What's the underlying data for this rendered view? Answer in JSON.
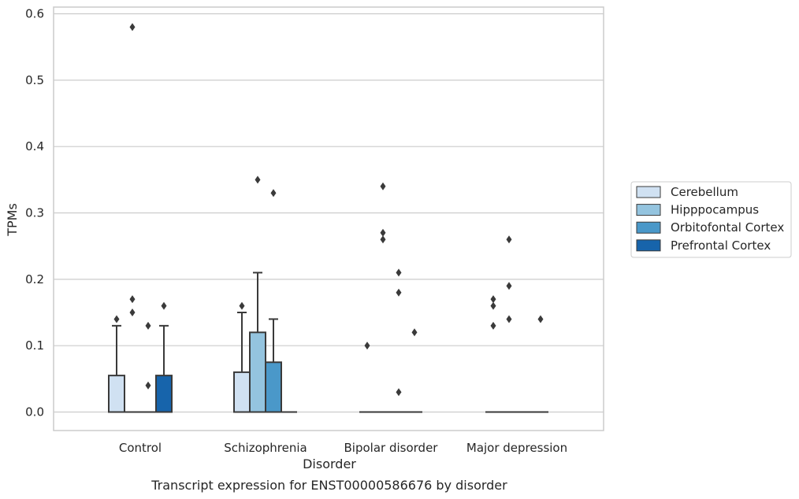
{
  "chart_data": {
    "type": "box",
    "title": "",
    "caption": "Transcript expression for ENST00000586676 by disorder",
    "xlabel": "Disorder",
    "ylabel": "TPMs",
    "ylim": [
      -0.03,
      0.61
    ],
    "yticks": [
      "0.0",
      "0.1",
      "0.2",
      "0.3",
      "0.4",
      "0.5",
      "0.6"
    ],
    "grid": "horizontal",
    "legend_position": "right",
    "categories": [
      "Control",
      "Schizophrenia",
      "Bipolar disorder",
      "Major depression"
    ],
    "series": [
      {
        "name": "Cerebellum",
        "color": "#d0e1f2",
        "boxes": [
          {
            "q1": 0,
            "median": 0,
            "q3": 0.055,
            "whisker_low": 0,
            "whisker_high": 0.13,
            "outliers": [
              0.14
            ]
          },
          {
            "q1": 0,
            "median": 0,
            "q3": 0.06,
            "whisker_low": 0,
            "whisker_high": 0.15,
            "outliers": [
              0.16
            ]
          },
          {
            "q1": 0,
            "median": 0,
            "q3": 0,
            "whisker_low": 0,
            "whisker_high": 0,
            "outliers": [
              0.1
            ]
          },
          {
            "q1": 0,
            "median": 0,
            "q3": 0,
            "whisker_low": 0,
            "whisker_high": 0,
            "outliers": [
              0.13,
              0.16,
              0.17
            ]
          }
        ]
      },
      {
        "name": "Hipppocampus",
        "color": "#94c4df",
        "boxes": [
          {
            "q1": 0,
            "median": 0,
            "q3": 0,
            "whisker_low": 0,
            "whisker_high": 0,
            "outliers": [
              0.15,
              0.17,
              0.58
            ]
          },
          {
            "q1": 0,
            "median": 0,
            "q3": 0.12,
            "whisker_low": 0,
            "whisker_high": 0.21,
            "outliers": [
              0.35
            ]
          },
          {
            "q1": 0,
            "median": 0,
            "q3": 0,
            "whisker_low": 0,
            "whisker_high": 0,
            "outliers": [
              0.26,
              0.27,
              0.34
            ]
          },
          {
            "q1": 0,
            "median": 0,
            "q3": 0,
            "whisker_low": 0,
            "whisker_high": 0,
            "outliers": [
              0.14,
              0.19,
              0.26
            ]
          }
        ]
      },
      {
        "name": "Orbitofontal Cortex",
        "color": "#4a98c9",
        "boxes": [
          {
            "q1": 0,
            "median": 0,
            "q3": 0,
            "whisker_low": 0,
            "whisker_high": 0,
            "outliers": [
              0.04,
              0.13
            ]
          },
          {
            "q1": 0,
            "median": 0,
            "q3": 0.075,
            "whisker_low": 0,
            "whisker_high": 0.14,
            "outliers": [
              0.33
            ]
          },
          {
            "q1": 0,
            "median": 0,
            "q3": 0,
            "whisker_low": 0,
            "whisker_high": 0,
            "outliers": [
              0.03,
              0.18,
              0.21
            ]
          },
          {
            "q1": 0,
            "median": 0,
            "q3": 0,
            "whisker_low": 0,
            "whisker_high": 0,
            "outliers": []
          }
        ]
      },
      {
        "name": "Prefrontal Cortex",
        "color": "#1764ab",
        "boxes": [
          {
            "q1": 0,
            "median": 0,
            "q3": 0.055,
            "whisker_low": 0,
            "whisker_high": 0.13,
            "outliers": [
              0.16
            ]
          },
          {
            "q1": 0,
            "median": 0,
            "q3": 0,
            "whisker_low": 0,
            "whisker_high": 0,
            "outliers": []
          },
          {
            "q1": 0,
            "median": 0,
            "q3": 0,
            "whisker_low": 0,
            "whisker_high": 0,
            "outliers": [
              0.12
            ]
          },
          {
            "q1": 0,
            "median": 0,
            "q3": 0,
            "whisker_low": 0,
            "whisker_high": 0,
            "outliers": [
              0.14
            ]
          }
        ]
      }
    ]
  }
}
